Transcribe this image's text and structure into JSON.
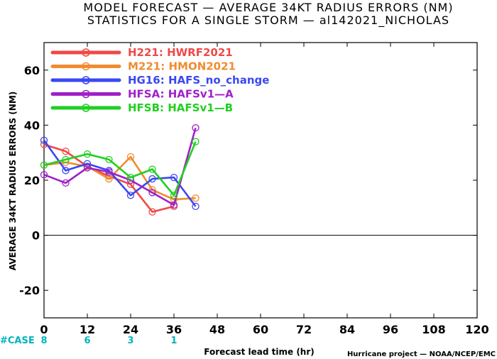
{
  "chart_data": {
    "type": "line",
    "title": "MODEL FORECAST — AVERAGE 34KT RADIUS ERRORS (NM)",
    "subtitle": "STATISTICS FOR A SINGLE STORM — al142021_NICHOLAS",
    "xlabel": "Forecast lead time (hr)",
    "ylabel": "AVERAGE 34KT RADIUS ERRORS (NM)",
    "xlim": [
      0,
      120
    ],
    "ylim": [
      -30,
      70
    ],
    "x_ticks": [
      0,
      12,
      24,
      36,
      48,
      60,
      72,
      84,
      96,
      108,
      120
    ],
    "y_ticks": [
      -20,
      0,
      20,
      40,
      60
    ],
    "zero_line": true,
    "legend_position": "top-left",
    "case_label": "#CASE",
    "cases": [
      {
        "x": 0,
        "count": "8"
      },
      {
        "x": 12,
        "count": "6"
      },
      {
        "x": 24,
        "count": "3"
      },
      {
        "x": 36,
        "count": "1"
      }
    ],
    "credit": "Hurricane project — NOAA/NCEP/EMC",
    "series": [
      {
        "name": "H221:  HWRF2021",
        "color": "#f04848",
        "x": [
          0,
          6,
          12,
          18,
          24,
          30,
          36
        ],
        "values": [
          33,
          30.5,
          25,
          21.5,
          18.5,
          8.5,
          10.5
        ]
      },
      {
        "name": "M221:  HMON2021",
        "color": "#f08c30",
        "x": [
          0,
          6,
          12,
          18,
          24,
          30,
          36,
          42
        ],
        "values": [
          25.5,
          26.5,
          25,
          20.5,
          28.5,
          16.5,
          13,
          13.5
        ]
      },
      {
        "name": "HG16:  HAFS_no_change",
        "color": "#3a48f0",
        "x": [
          0,
          6,
          12,
          18,
          24,
          30,
          36,
          42
        ],
        "values": [
          34.5,
          23.5,
          26,
          23.5,
          14.5,
          20.5,
          21,
          10.5
        ]
      },
      {
        "name": "HFSA:  HAFSv1—A",
        "color": "#a020c8",
        "x": [
          0,
          6,
          12,
          18,
          24,
          30,
          36,
          42
        ],
        "values": [
          22,
          19,
          24.5,
          23,
          20,
          15.5,
          11,
          39
        ]
      },
      {
        "name": "HFSB:  HAFSv1—B",
        "color": "#20d020",
        "x": [
          0,
          6,
          12,
          18,
          24,
          30,
          36,
          42
        ],
        "values": [
          25.5,
          27.5,
          29.5,
          27.5,
          21,
          24,
          14.5,
          34
        ]
      }
    ]
  }
}
